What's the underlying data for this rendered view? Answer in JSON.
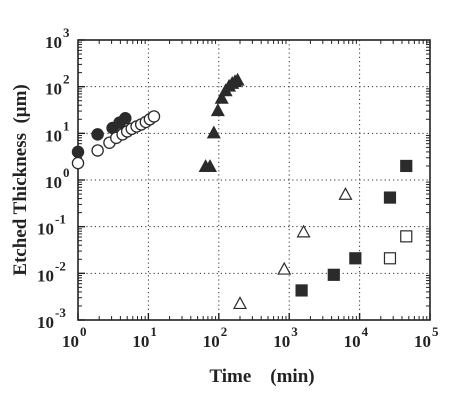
{
  "chart_data": {
    "type": "scatter",
    "title": "",
    "xlabel": "Time    (min)",
    "ylabel": "Etched Thickness  (μm)",
    "xscale": "log",
    "yscale": "log",
    "xlim": [
      1,
      100000
    ],
    "ylim": [
      0.001,
      1000
    ],
    "grid": true,
    "grid_style": "dotted",
    "x_ticks": [
      {
        "base": "10",
        "exp": "0"
      },
      {
        "base": "10",
        "exp": "1"
      },
      {
        "base": "10",
        "exp": "2"
      },
      {
        "base": "10",
        "exp": "3"
      },
      {
        "base": "10",
        "exp": "4"
      },
      {
        "base": "10",
        "exp": "5"
      }
    ],
    "y_ticks": [
      {
        "base": "10",
        "exp": "-3"
      },
      {
        "base": "10",
        "exp": "-2"
      },
      {
        "base": "10",
        "exp": "-1"
      },
      {
        "base": "10",
        "exp": "0"
      },
      {
        "base": "10",
        "exp": "1"
      },
      {
        "base": "10",
        "exp": "2"
      },
      {
        "base": "10",
        "exp": "3"
      }
    ],
    "series": [
      {
        "marker": "circle",
        "fill": "filled",
        "x": [
          1.0,
          1.9,
          3.1,
          3.9,
          4.7
        ],
        "y": [
          4.0,
          9.5,
          13.0,
          17.0,
          21.0
        ]
      },
      {
        "marker": "circle",
        "fill": "open",
        "x": [
          1.0,
          1.9,
          2.8,
          3.5,
          4.3,
          5.0,
          5.8,
          6.8,
          7.9,
          9.2,
          10.5,
          12.0
        ],
        "y": [
          2.3,
          4.3,
          6.3,
          8.0,
          9.5,
          11.0,
          12.5,
          14.0,
          15.5,
          17.5,
          20.0,
          23.0
        ]
      },
      {
        "marker": "triangle",
        "fill": "filled",
        "x": [
          65,
          75,
          85,
          97,
          110,
          125,
          140,
          155,
          170,
          185
        ],
        "y": [
          1.9,
          1.9,
          10,
          30,
          55,
          80,
          100,
          115,
          125,
          135
        ]
      },
      {
        "marker": "triangle",
        "fill": "open",
        "x": [
          200,
          850,
          1600,
          6300
        ],
        "y": [
          0.0022,
          0.012,
          0.075,
          0.48
        ]
      },
      {
        "marker": "square",
        "fill": "filled",
        "x": [
          1500,
          4300,
          8700,
          27000,
          46000
        ],
        "y": [
          0.0043,
          0.0093,
          0.021,
          0.42,
          2.0
        ]
      },
      {
        "marker": "square",
        "fill": "open",
        "x": [
          27000,
          46000
        ],
        "y": [
          0.021,
          0.062
        ]
      }
    ]
  }
}
